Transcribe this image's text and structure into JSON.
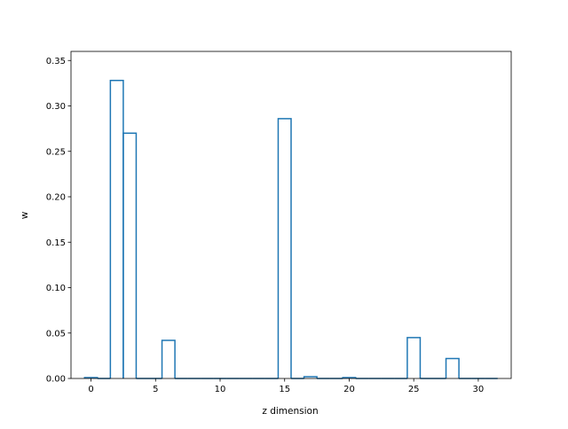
{
  "chart_data": {
    "type": "bar",
    "style": "step-outline",
    "title": "",
    "xlabel": "z dimension",
    "ylabel": "w",
    "xlim": [
      -1.55,
      32.55
    ],
    "ylim": [
      0,
      0.36
    ],
    "xticks": [
      0,
      5,
      10,
      15,
      20,
      25,
      30
    ],
    "yticks": [
      0.0,
      0.05,
      0.1,
      0.15,
      0.2,
      0.25,
      0.3,
      0.35
    ],
    "ytick_labels": [
      "0.00",
      "0.05",
      "0.10",
      "0.15",
      "0.20",
      "0.25",
      "0.30",
      "0.35"
    ],
    "grid": false,
    "legend": "none",
    "color": "#1f77b4",
    "x": [
      0,
      1,
      2,
      3,
      4,
      5,
      6,
      7,
      8,
      9,
      10,
      11,
      12,
      13,
      14,
      15,
      16,
      17,
      18,
      19,
      20,
      21,
      22,
      23,
      24,
      25,
      26,
      27,
      28,
      29,
      30,
      31
    ],
    "values": [
      0.001,
      0.0,
      0.328,
      0.27,
      0.0,
      0.0,
      0.042,
      0.0,
      0.0,
      0.0,
      0.0,
      0.0,
      0.0,
      0.0,
      0.0,
      0.286,
      0.0,
      0.002,
      0.0,
      0.0,
      0.001,
      0.0,
      0.0,
      0.0,
      0.0,
      0.045,
      0.0,
      0.0,
      0.022,
      0.0,
      0.0,
      0.0
    ]
  }
}
